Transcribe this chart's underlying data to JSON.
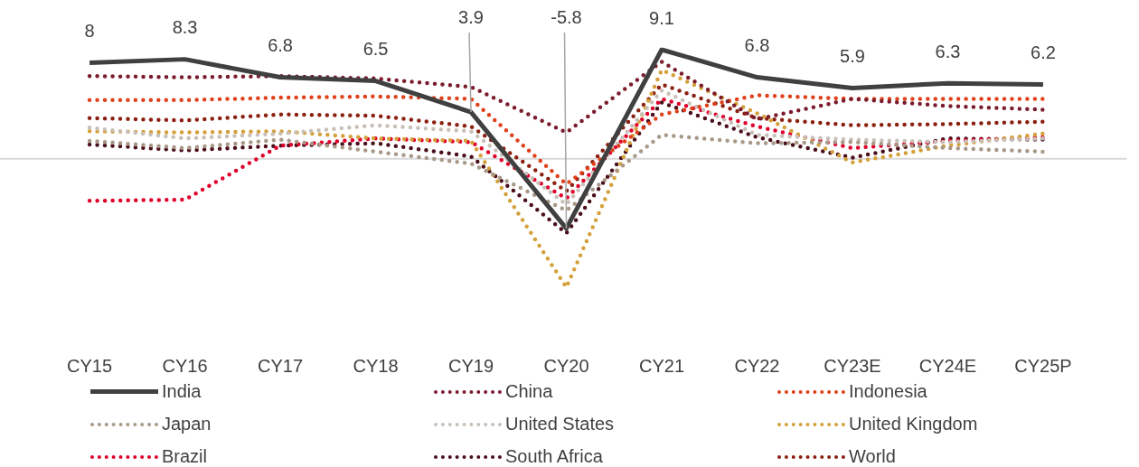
{
  "chart_data": {
    "type": "line",
    "categories": [
      "CY15",
      "CY16",
      "CY17",
      "CY18",
      "CY19",
      "CY20",
      "CY21",
      "CY22",
      "CY23E",
      "CY24E",
      "CY25P"
    ],
    "tick_labels": "x",
    "grid": false,
    "legend": "bottom",
    "marker": "none",
    "ref_lines": [
      {
        "axis": "y",
        "value": 0,
        "color": "#d9d9d9"
      }
    ],
    "series": [
      {
        "name": "India",
        "color": "#404040",
        "line_style": "solid",
        "values": [
          8,
          8.3,
          6.8,
          6.5,
          3.9,
          -5.8,
          9.1,
          6.8,
          5.9,
          6.3,
          6.2
        ],
        "value_labels": [
          "8",
          "8.3",
          "6.8",
          "6.5",
          "3.9",
          "-5.8",
          "9.1",
          "6.8",
          "5.9",
          "6.3",
          "6.2"
        ]
      },
      {
        "name": "China",
        "color": "#7b1c2e",
        "line_style": "dotted",
        "values": [
          6.9,
          6.8,
          6.9,
          6.7,
          6.0,
          2.2,
          8.1,
          3.3,
          5.0,
          4.4,
          4.1
        ]
      },
      {
        "name": "Indonesia",
        "color": "#e0401a",
        "line_style": "dotted",
        "values": [
          4.9,
          4.9,
          5.1,
          5.2,
          5.0,
          -2.1,
          3.7,
          5.3,
          5.0,
          5.0,
          5.0
        ]
      },
      {
        "name": "Japan",
        "color": "#a89888",
        "line_style": "dotted",
        "values": [
          1.5,
          0.9,
          1.6,
          0.6,
          -0.4,
          -4.3,
          2.0,
          1.3,
          1.4,
          0.9,
          0.6
        ]
      },
      {
        "name": "United States",
        "color": "#c8c0b8",
        "line_style": "dotted",
        "values": [
          2.6,
          1.7,
          2.1,
          2.8,
          2.3,
          -3.8,
          5.7,
          2.0,
          1.6,
          1.4,
          1.7
        ]
      },
      {
        "name": "United Kingdom",
        "color": "#d4a03a",
        "line_style": "dotted",
        "values": [
          2.3,
          2.2,
          2.3,
          1.7,
          1.5,
          -10.7,
          7.4,
          3.8,
          -0.3,
          1.1,
          2.1
        ]
      },
      {
        "name": "Brazil",
        "color": "#e0002a",
        "line_style": "dotted",
        "values": [
          -3.5,
          -3.4,
          1.1,
          1.7,
          1.4,
          -3.3,
          5.0,
          2.7,
          0.9,
          1.5,
          1.8
        ]
      },
      {
        "name": "South Africa",
        "color": "#4a0f1a",
        "line_style": "dotted",
        "values": [
          1.2,
          0.7,
          1.1,
          1.3,
          0.2,
          -6.2,
          4.7,
          1.8,
          0.1,
          1.7,
          1.6
        ]
      },
      {
        "name": "World",
        "color": "#8b2010",
        "line_style": "dotted",
        "values": [
          3.4,
          3.2,
          3.7,
          3.6,
          2.7,
          -2.7,
          6.2,
          3.4,
          2.8,
          2.9,
          3.1
        ]
      }
    ]
  }
}
